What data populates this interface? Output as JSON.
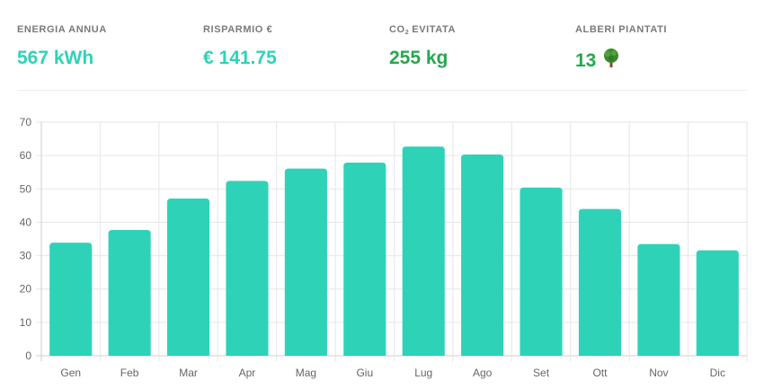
{
  "stats": {
    "energy": {
      "label": "ENERGIA ANNUA",
      "value": "567 kWh",
      "color": "#2ed3b7"
    },
    "savings": {
      "label": "RISPARMIO €",
      "value": "€ 141.75",
      "color": "#2ed3b7"
    },
    "co2": {
      "label_pre": "CO",
      "label_sub": "2",
      "label_post": " EVITATA",
      "value": "255 kg",
      "color": "#27a64f"
    },
    "trees": {
      "label": "ALBERI PIANTATI",
      "value": "13",
      "icon": "tree-icon",
      "color": "#27a64f"
    }
  },
  "chart_data": {
    "type": "bar",
    "categories": [
      "Gen",
      "Feb",
      "Mar",
      "Apr",
      "Mag",
      "Giu",
      "Lug",
      "Ago",
      "Set",
      "Ott",
      "Nov",
      "Dic"
    ],
    "values": [
      33.9,
      37.7,
      47.1,
      52.4,
      56.1,
      57.9,
      62.7,
      60.3,
      50.4,
      44.0,
      33.5,
      31.6
    ],
    "ylim": [
      0,
      70
    ],
    "yticks": [
      0,
      10,
      20,
      30,
      40,
      50,
      60,
      70
    ],
    "grid": true,
    "bar_color": "#2ed3b7",
    "title": "",
    "xlabel": "",
    "ylabel": ""
  }
}
